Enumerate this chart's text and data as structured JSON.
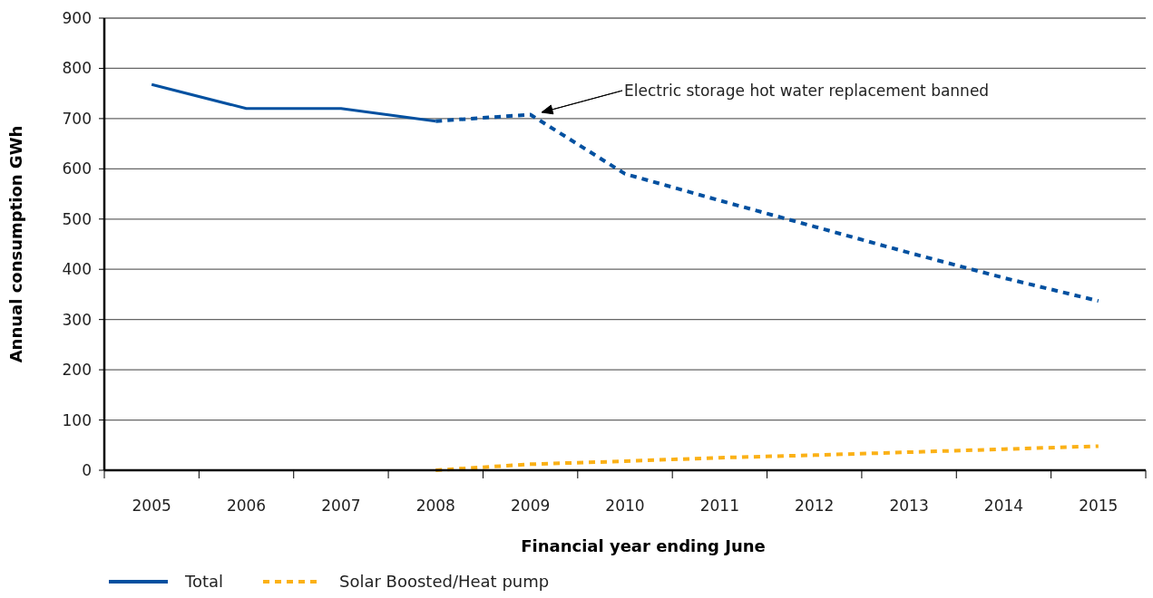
{
  "chart_data": {
    "type": "line",
    "xlabel": "Financial year ending June",
    "ylabel": "Annual consumption GWh",
    "categories": [
      "2005",
      "2006",
      "2007",
      "2008",
      "2009",
      "2010",
      "2011",
      "2012",
      "2013",
      "2014",
      "2015"
    ],
    "series": [
      {
        "name": "Total",
        "color": "#0050a0",
        "line_style": "solid",
        "values": [
          768,
          720,
          720,
          695,
          null,
          null,
          null,
          null,
          null,
          null,
          null
        ]
      },
      {
        "color": "#0050a0",
        "line_style": "dashed",
        "values": [
          null,
          null,
          null,
          695,
          708,
          590,
          537,
          485,
          433,
          383,
          337
        ]
      },
      {
        "name": "Solar Boosted/Heat pump",
        "color": "#fbb116",
        "line_style": "dashed",
        "values": [
          null,
          null,
          null,
          0,
          12,
          18,
          25,
          30,
          36,
          42,
          48
        ]
      }
    ],
    "ylim": [
      0,
      900
    ],
    "yticks": [
      0,
      100,
      200,
      300,
      400,
      500,
      600,
      700,
      800,
      900
    ],
    "grid": "y",
    "legend": "bottom left",
    "marker": "none",
    "annotations": [
      "Electric storage hot water replacement banned"
    ]
  }
}
